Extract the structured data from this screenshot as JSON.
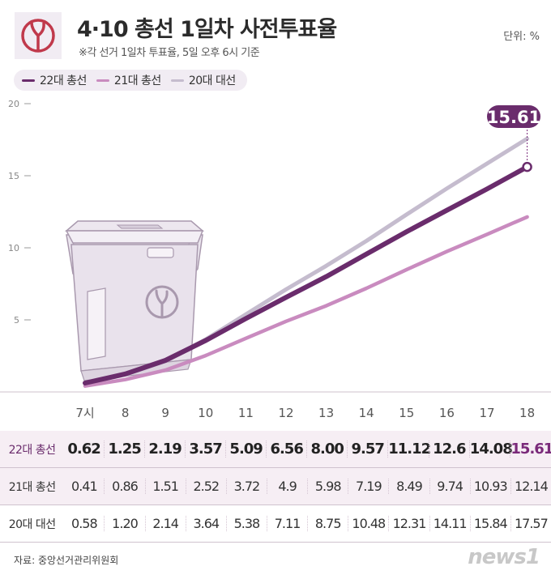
{
  "header": {
    "title": "4·10 총선 1일차 사전투표율",
    "subtitle": "※각 선거 1일차 투표율, 5일 오후 6시 기준",
    "unit": "단위: %"
  },
  "legend": [
    {
      "label": "22대 총선",
      "color": "#6a2c6c"
    },
    {
      "label": "21대 총선",
      "color": "#c98bbf"
    },
    {
      "label": "20대 대선",
      "color": "#c5bcce"
    }
  ],
  "colors": {
    "accent": "#6a2c6c",
    "highlight_bg": "#f6eef4"
  },
  "icons": {
    "logo": "ballot-stamp-icon",
    "illustration": "ballot-box-icon"
  },
  "callout": "15.61",
  "chart_data": {
    "type": "line",
    "x": [
      "7시",
      "8",
      "9",
      "10",
      "11",
      "12",
      "13",
      "14",
      "15",
      "16",
      "17",
      "18"
    ],
    "yticks": [
      5,
      10,
      15,
      20
    ],
    "ylim": [
      0,
      20
    ],
    "grid": false,
    "legend_position": "top-left",
    "series": [
      {
        "name": "22대 총선",
        "color": "#6a2c6c",
        "values": [
          0.62,
          1.25,
          2.19,
          3.57,
          5.09,
          6.56,
          8.0,
          9.57,
          11.12,
          12.6,
          14.08,
          15.61
        ]
      },
      {
        "name": "21대 총선",
        "color": "#c98bbf",
        "values": [
          0.41,
          0.86,
          1.51,
          2.52,
          3.72,
          4.9,
          5.98,
          7.19,
          8.49,
          9.74,
          10.93,
          12.14
        ]
      },
      {
        "name": "20대 대선",
        "color": "#c5bcce",
        "values": [
          0.58,
          1.2,
          2.14,
          3.64,
          5.38,
          7.11,
          8.75,
          10.48,
          12.31,
          14.11,
          15.84,
          17.57
        ]
      }
    ]
  },
  "table": {
    "rows": [
      {
        "label": "22대 총선",
        "values": [
          "0.62",
          "1.25",
          "2.19",
          "3.57",
          "5.09",
          "6.56",
          "8.00",
          "9.57",
          "11.12",
          "12.6",
          "14.08",
          "15.61"
        ]
      },
      {
        "label": "21대 총선",
        "values": [
          "0.41",
          "0.86",
          "1.51",
          "2.52",
          "3.72",
          "4.9",
          "5.98",
          "7.19",
          "8.49",
          "9.74",
          "10.93",
          "12.14"
        ]
      },
      {
        "label": "20대 대선",
        "values": [
          "0.58",
          "1.20",
          "2.14",
          "3.64",
          "5.38",
          "7.11",
          "8.75",
          "10.48",
          "12.31",
          "14.11",
          "15.84",
          "17.57"
        ]
      }
    ]
  },
  "footer": {
    "source": "자료: 중앙선거관리위원회",
    "brand": "news1"
  }
}
